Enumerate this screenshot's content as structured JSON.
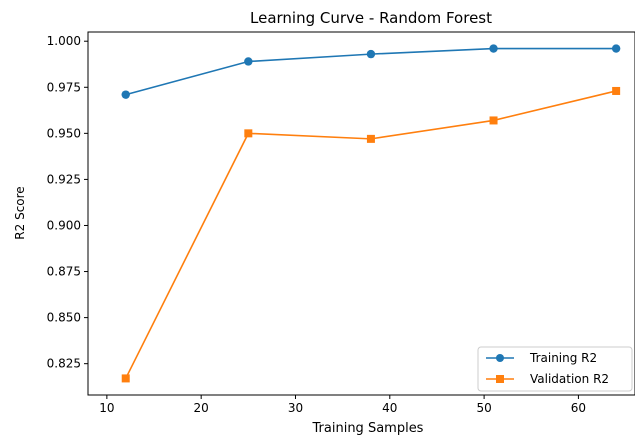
{
  "chart_data": {
    "type": "line",
    "title": "Learning Curve - Random Forest",
    "xlabel": "Training Samples",
    "ylabel": "R2 Score",
    "xlim": [
      8,
      66
    ],
    "ylim": [
      0.808,
      1.005
    ],
    "x_ticks": [
      10,
      20,
      30,
      40,
      50,
      60
    ],
    "y_ticks": [
      0.825,
      0.85,
      0.875,
      0.9,
      0.925,
      0.95,
      0.975,
      1.0
    ],
    "y_tick_labels": [
      "0.825",
      "0.850",
      "0.875",
      "0.900",
      "0.925",
      "0.950",
      "0.975",
      "1.000"
    ],
    "grid": false,
    "legend_position": "bottom-right",
    "series": [
      {
        "name": "Training R2",
        "color": "#1f77b4",
        "marker": "circle",
        "x": [
          12,
          25,
          38,
          51,
          64
        ],
        "y": [
          0.971,
          0.989,
          0.993,
          0.996,
          0.996
        ]
      },
      {
        "name": "Validation R2",
        "color": "#ff7f0e",
        "marker": "square",
        "x": [
          12,
          25,
          38,
          51,
          64
        ],
        "y": [
          0.817,
          0.95,
          0.947,
          0.957,
          0.973
        ]
      }
    ]
  }
}
